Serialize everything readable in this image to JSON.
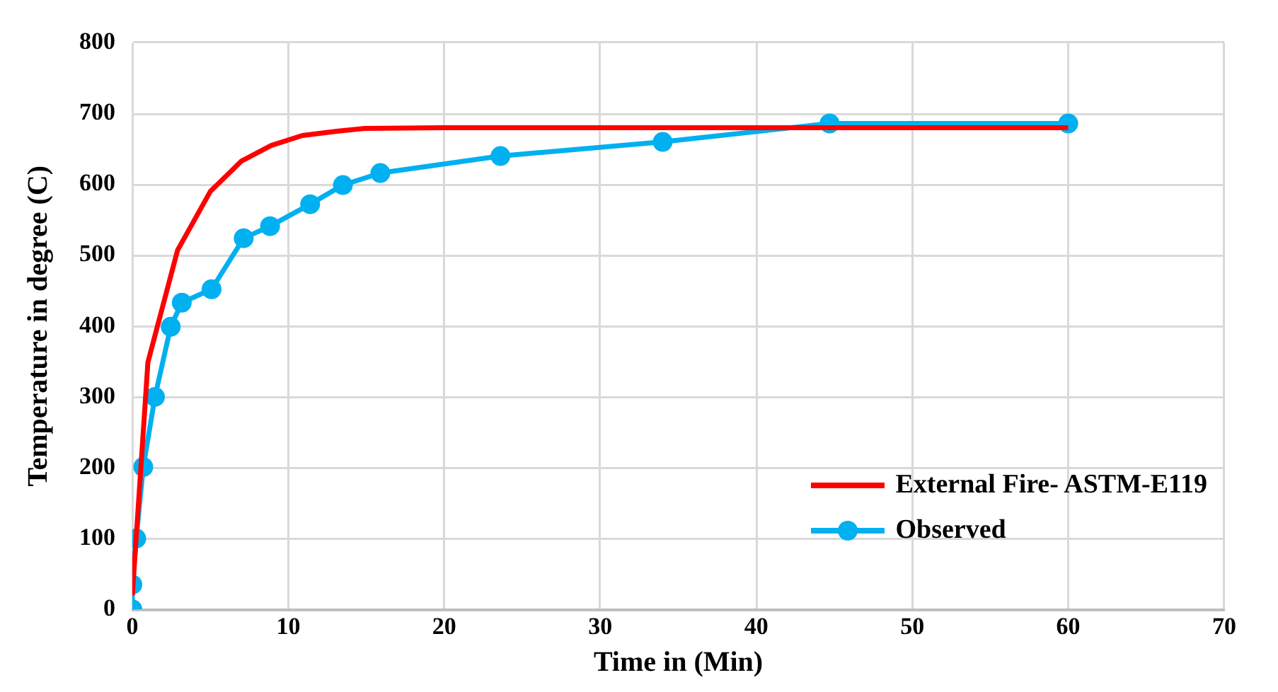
{
  "chart_data": {
    "type": "line",
    "xlabel": "Time in (Min)",
    "ylabel": "Temperature in degree (C)",
    "xlim": [
      0,
      70
    ],
    "xticks": [
      0,
      10,
      20,
      30,
      40,
      50,
      60,
      70
    ],
    "ylim": [
      0,
      800
    ],
    "yticks": [
      0,
      100,
      200,
      300,
      400,
      500,
      600,
      700,
      800
    ],
    "grid": true,
    "legend": "bottom right",
    "series": [
      {
        "name": "External Fire- ASTM-E119",
        "color": "#ff0000",
        "marker": "none",
        "x": [
          0,
          1,
          2.9,
          5,
          7,
          8.9,
          10.9,
          13.1,
          14.9,
          19.8,
          30,
          40,
          50,
          60
        ],
        "values": [
          20,
          349,
          507,
          590,
          633,
          655,
          669,
          675,
          679,
          680,
          680,
          680,
          680,
          680
        ]
      },
      {
        "name": "Observed",
        "color": "#00b0f0",
        "marker": "circle",
        "x": [
          0,
          0,
          0.25,
          0.7,
          1.45,
          2.46,
          3.17,
          5.08,
          7.14,
          8.83,
          11.4,
          13.5,
          15.9,
          23.6,
          34,
          44.7,
          60
        ],
        "values": [
          0,
          35,
          100,
          201,
          300,
          399,
          433,
          452,
          524,
          541,
          572,
          599,
          616,
          640,
          660,
          686,
          686
        ]
      }
    ]
  }
}
